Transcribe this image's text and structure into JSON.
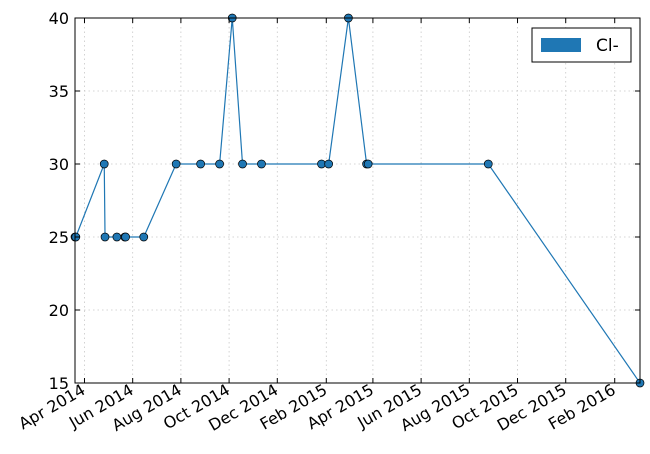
{
  "chart_data": {
    "type": "line",
    "title": "",
    "xlabel": "",
    "ylabel": "",
    "x_axis": "date",
    "xlim": [
      "2014-03-20",
      "2016-03-04"
    ],
    "ylim": [
      15,
      40
    ],
    "yticks": [
      15,
      20,
      25,
      30,
      35,
      40
    ],
    "xticks": [
      {
        "date": "2014-04-01",
        "label": "Apr 2014"
      },
      {
        "date": "2014-06-01",
        "label": "Jun 2014"
      },
      {
        "date": "2014-08-01",
        "label": "Aug 2014"
      },
      {
        "date": "2014-10-01",
        "label": "Oct 2014"
      },
      {
        "date": "2014-12-01",
        "label": "Dec 2014"
      },
      {
        "date": "2015-02-01",
        "label": "Feb 2015"
      },
      {
        "date": "2015-04-01",
        "label": "Apr 2015"
      },
      {
        "date": "2015-06-01",
        "label": "Jun 2015"
      },
      {
        "date": "2015-08-01",
        "label": "Aug 2015"
      },
      {
        "date": "2015-10-01",
        "label": "Oct 2015"
      },
      {
        "date": "2015-12-01",
        "label": "Dec 2015"
      },
      {
        "date": "2016-02-01",
        "label": "Feb 2016"
      }
    ],
    "grid": true,
    "legend": {
      "position": "top-right",
      "entries": [
        "Cl-"
      ]
    },
    "series": [
      {
        "name": "Cl-",
        "color": "#1f77b4",
        "marker": "circle",
        "points": [
          {
            "x": "2014-03-20",
            "y": 25
          },
          {
            "x": "2014-03-21",
            "y": 25
          },
          {
            "x": "2014-04-26",
            "y": 30
          },
          {
            "x": "2014-04-27",
            "y": 25
          },
          {
            "x": "2014-05-12",
            "y": 25
          },
          {
            "x": "2014-05-22",
            "y": 25
          },
          {
            "x": "2014-05-23",
            "y": 25
          },
          {
            "x": "2014-06-15",
            "y": 25
          },
          {
            "x": "2014-07-26",
            "y": 30
          },
          {
            "x": "2014-08-26",
            "y": 30
          },
          {
            "x": "2014-09-19",
            "y": 30
          },
          {
            "x": "2014-10-05",
            "y": 40
          },
          {
            "x": "2014-10-18",
            "y": 30
          },
          {
            "x": "2014-11-11",
            "y": 30
          },
          {
            "x": "2015-01-26",
            "y": 30
          },
          {
            "x": "2015-02-04",
            "y": 30
          },
          {
            "x": "2015-03-01",
            "y": 40
          },
          {
            "x": "2015-03-24",
            "y": 30
          },
          {
            "x": "2015-03-26",
            "y": 30
          },
          {
            "x": "2015-08-25",
            "y": 30
          },
          {
            "x": "2016-03-04",
            "y": 15
          }
        ]
      }
    ]
  }
}
